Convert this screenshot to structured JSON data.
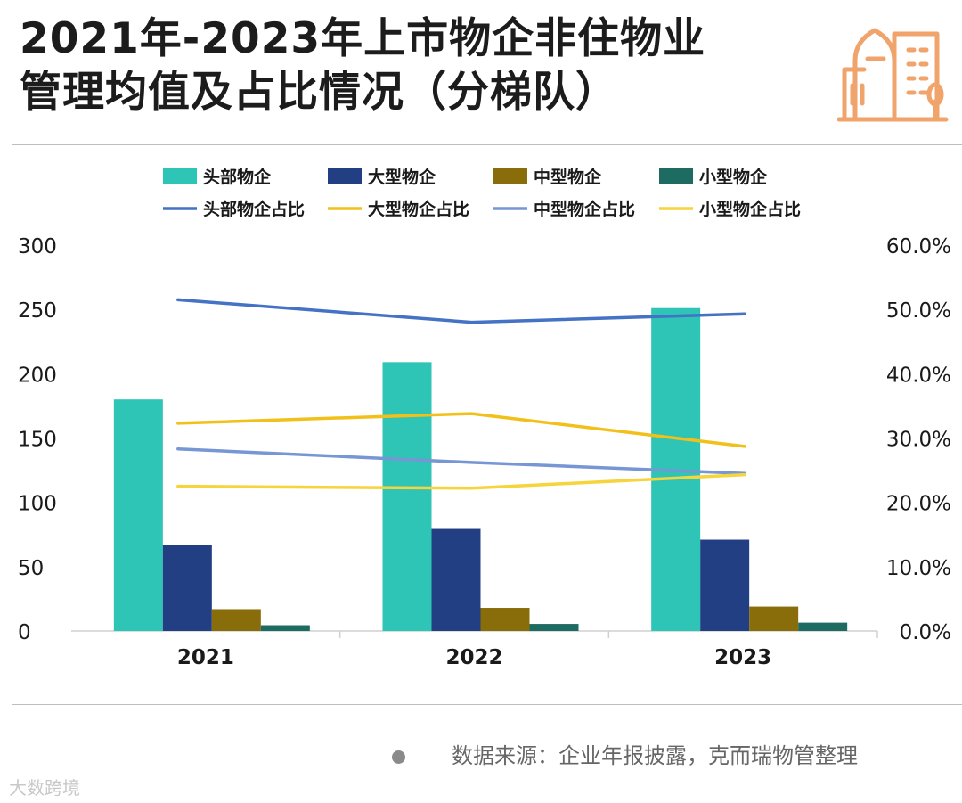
{
  "title": {
    "line1": "2021年-2023年上市物企非住物业",
    "line2": "管理均值及占比情况（分梯队）"
  },
  "source_text": "数据来源：企业年报披露，克而瑞物管整理",
  "brand_text": "大数跨境",
  "colors": {
    "head_bar": "#2ec4b6",
    "large_bar": "#233f83",
    "mid_bar": "#8a6d0b",
    "small_bar": "#1e6b62",
    "head_line": "#4472c4",
    "large_line": "#f2c01a",
    "mid_line": "#7696d4",
    "small_line": "#f5d43c",
    "logo": "#f0a36a"
  },
  "chart_data": {
    "type": "bar",
    "categories": [
      "2021",
      "2022",
      "2023"
    ],
    "series": [
      {
        "name": "头部物企",
        "kind": "bar",
        "axis": "left",
        "color_key": "head_bar",
        "values": [
          180,
          209,
          251
        ]
      },
      {
        "name": "大型物企",
        "kind": "bar",
        "axis": "left",
        "color_key": "large_bar",
        "values": [
          67,
          80,
          71
        ]
      },
      {
        "name": "中型物企",
        "kind": "bar",
        "axis": "left",
        "color_key": "mid_bar",
        "values": [
          17,
          18,
          19
        ]
      },
      {
        "name": "小型物企",
        "kind": "bar",
        "axis": "left",
        "color_key": "small_bar",
        "values": [
          4.5,
          5.5,
          6.5
        ]
      },
      {
        "name": "头部物企占比",
        "kind": "line",
        "axis": "right",
        "color_key": "head_line",
        "values": [
          51.5,
          48.0,
          49.3
        ]
      },
      {
        "name": "大型物企占比",
        "kind": "line",
        "axis": "right",
        "color_key": "large_line",
        "values": [
          32.3,
          33.8,
          28.7
        ]
      },
      {
        "name": "中型物企占比",
        "kind": "line",
        "axis": "right",
        "color_key": "mid_line",
        "values": [
          28.3,
          26.2,
          24.5
        ]
      },
      {
        "name": "小型物企占比",
        "kind": "line",
        "axis": "right",
        "color_key": "small_line",
        "values": [
          22.5,
          22.2,
          24.3
        ]
      }
    ],
    "y_left": {
      "min": 0,
      "max": 300,
      "ticks": [
        "0",
        "50",
        "100",
        "150",
        "200",
        "250",
        "300"
      ]
    },
    "y_right": {
      "min": 0,
      "max": 60,
      "ticks": [
        "0.0%",
        "10.0%",
        "20.0%",
        "30.0%",
        "40.0%",
        "50.0%",
        "60.0%"
      ]
    },
    "legend_position": "top",
    "grid": false
  }
}
